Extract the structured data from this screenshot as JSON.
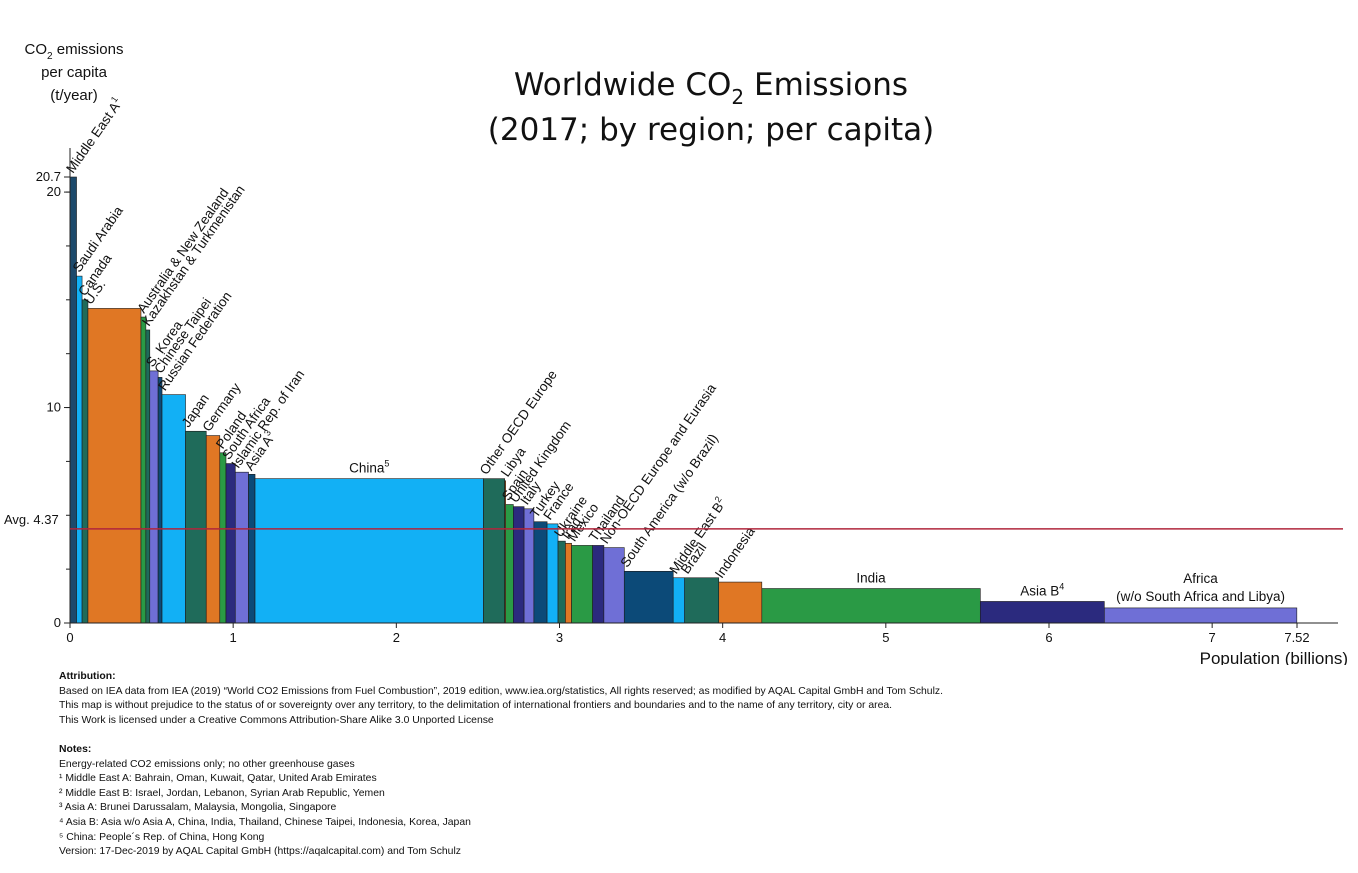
{
  "chart_data": {
    "type": "bar",
    "variant": "variable-width (marimekko)",
    "title_line1_main": "Worldwide CO",
    "title_line1_sub": "2",
    "title_line1_rest": " Emissions",
    "title_line2": "(2017; by region; per capita)",
    "ylabel_lines": [
      "CO",
      "2",
      " emissions",
      "per capita",
      "(t/year)"
    ],
    "xlabel": "Population (billions)",
    "ylim": [
      0,
      20.7
    ],
    "xlim": [
      0,
      7.52
    ],
    "x_ticks": [
      "0",
      "1",
      "2",
      "3",
      "4",
      "5",
      "6",
      "7",
      "7.52"
    ],
    "x_tick_values": [
      0,
      1,
      2,
      3,
      4,
      5,
      6,
      7,
      7.52
    ],
    "y_ticks": [
      "0",
      "10",
      "20",
      "20.7"
    ],
    "y_tick_values": [
      0,
      10,
      20,
      20.7
    ],
    "average": {
      "label": "Avg. 4.37",
      "value": 4.37,
      "color": "#b0263c"
    },
    "bars": [
      {
        "name": "Middle East A",
        "sup": "1",
        "population": 0.04,
        "value": 20.7,
        "color": "#1d4a6c"
      },
      {
        "name": "Saudi Arabia",
        "sup": "",
        "population": 0.034,
        "value": 16.1,
        "color": "#12b0f5"
      },
      {
        "name": "Canada",
        "sup": "",
        "population": 0.036,
        "value": 15.0,
        "color": "#1f6b5a"
      },
      {
        "name": "U.S.",
        "sup": "",
        "population": 0.325,
        "value": 14.6,
        "color": "#e07724"
      },
      {
        "name": "Australia & New Zealand",
        "sup": "",
        "population": 0.03,
        "value": 14.2,
        "color": "#2a9a45"
      },
      {
        "name": "Kazakhstan & Turkmenistan",
        "sup": "",
        "population": 0.024,
        "value": 13.6,
        "color": "#1f6b5a"
      },
      {
        "name": "S. Korea",
        "sup": "",
        "population": 0.051,
        "value": 11.7,
        "color": "#6f6fd6"
      },
      {
        "name": "Chinese Taipei",
        "sup": "",
        "population": 0.024,
        "value": 11.4,
        "color": "#0c4a78"
      },
      {
        "name": "Russian Federation",
        "sup": "",
        "population": 0.144,
        "value": 10.6,
        "color": "#12b0f5"
      },
      {
        "name": "Japan",
        "sup": "",
        "population": 0.127,
        "value": 8.9,
        "color": "#1f6b5a"
      },
      {
        "name": "Germany",
        "sup": "",
        "population": 0.083,
        "value": 8.7,
        "color": "#e07724"
      },
      {
        "name": "Poland",
        "sup": "",
        "population": 0.038,
        "value": 7.9,
        "color": "#2a9a45"
      },
      {
        "name": "South Africa",
        "sup": "",
        "population": 0.057,
        "value": 7.4,
        "color": "#2b2a7e"
      },
      {
        "name": "Islamic Rep. of Iran",
        "sup": "",
        "population": 0.081,
        "value": 7.0,
        "color": "#6f6fd6"
      },
      {
        "name": "Asia A",
        "sup": "3",
        "population": 0.04,
        "value": 6.9,
        "color": "#0c4a78"
      },
      {
        "name": "China",
        "sup": "5",
        "population": 1.4,
        "value": 6.7,
        "color": "#12b0f5"
      },
      {
        "name": "Other OECD Europe",
        "sup": "",
        "population": 0.13,
        "value": 6.7,
        "color": "#1f6b5a"
      },
      {
        "name": "Libya",
        "sup": "",
        "population": 0.006,
        "value": 6.6,
        "color": "#e07724"
      },
      {
        "name": "Spain",
        "sup": "",
        "population": 0.047,
        "value": 5.5,
        "color": "#2a9a45"
      },
      {
        "name": "United Kingdom",
        "sup": "",
        "population": 0.066,
        "value": 5.4,
        "color": "#2b2a7e"
      },
      {
        "name": "Italy",
        "sup": "",
        "population": 0.06,
        "value": 5.3,
        "color": "#6f6fd6"
      },
      {
        "name": "Turkey",
        "sup": "",
        "population": 0.081,
        "value": 4.7,
        "color": "#0c4a78"
      },
      {
        "name": "France",
        "sup": "",
        "population": 0.067,
        "value": 4.6,
        "color": "#12b0f5"
      },
      {
        "name": "Ukraine",
        "sup": "",
        "population": 0.045,
        "value": 3.8,
        "color": "#1f6b5a"
      },
      {
        "name": "Iraq",
        "sup": "",
        "population": 0.038,
        "value": 3.7,
        "color": "#e07724"
      },
      {
        "name": "Mexico",
        "sup": "",
        "population": 0.129,
        "value": 3.6,
        "color": "#2a9a45"
      },
      {
        "name": "Thailand",
        "sup": "",
        "population": 0.069,
        "value": 3.6,
        "color": "#2b2a7e"
      },
      {
        "name": "Non-OECD Europe and Eurasia",
        "sup": "",
        "population": 0.125,
        "value": 3.5,
        "color": "#6f6fd6"
      },
      {
        "name": "South America (w/o Brazil)",
        "sup": "",
        "population": 0.3,
        "value": 2.4,
        "color": "#0c4a78"
      },
      {
        "name": "Middle East B",
        "sup": "2",
        "population": 0.07,
        "value": 2.1,
        "color": "#12b0f5"
      },
      {
        "name": "Brazil",
        "sup": "",
        "population": 0.209,
        "value": 2.1,
        "color": "#1f6b5a"
      },
      {
        "name": "Indonesia",
        "sup": "",
        "population": 0.264,
        "value": 1.9,
        "color": "#e07724"
      },
      {
        "name": "India",
        "sup": "",
        "population": 1.339,
        "value": 1.6,
        "color": "#2a9a45"
      },
      {
        "name": "Asia B",
        "sup": "4",
        "population": 0.76,
        "value": 1.0,
        "color": "#2b2a7e"
      },
      {
        "name": "Africa",
        "sub": "(w/o South Africa and Libya)",
        "sup": "",
        "population": 1.18,
        "value": 0.7,
        "color": "#6f6fd6"
      }
    ]
  },
  "attribution": {
    "heading": "Attribution:",
    "lines": [
      "Based on IEA data from IEA (2019) “World CO2 Emissions from Fuel Combustion”, 2019 edition, www.iea.org/statistics, All rights reserved; as modified by AQAL Capital GmbH and Tom Schulz.",
      "This map is without prejudice to the status of or sovereignty over any territory, to the delimitation of international frontiers and boundaries and to the name of any territory, city or area.",
      "This Work is licensed under a Creative Commons Attribution-Share Alike 3.0 Unported License"
    ]
  },
  "notes": {
    "heading": "Notes:",
    "lines": [
      "Energy-related CO2 emissions only; no other greenhouse gases",
      "¹ Middle East A: Bahrain, Oman, Kuwait, Qatar, United Arab Emirates",
      "² Middle East B: Israel, Jordan, Lebanon, Syrian Arab Republic, Yemen",
      "³ Asia A: Brunei Darussalam, Malaysia, Mongolia, Singapore",
      "⁴ Asia B: Asia w/o Asia A, China, India, Thailand, Chinese Taipei, Indonesia, Korea, Japan",
      "⁵ China: People´s Rep. of China, Hong Kong",
      "Version: 17-Dec-2019 by AQAL Capital GmbH (https://aqalcapital.com) and Tom Schulz"
    ]
  }
}
